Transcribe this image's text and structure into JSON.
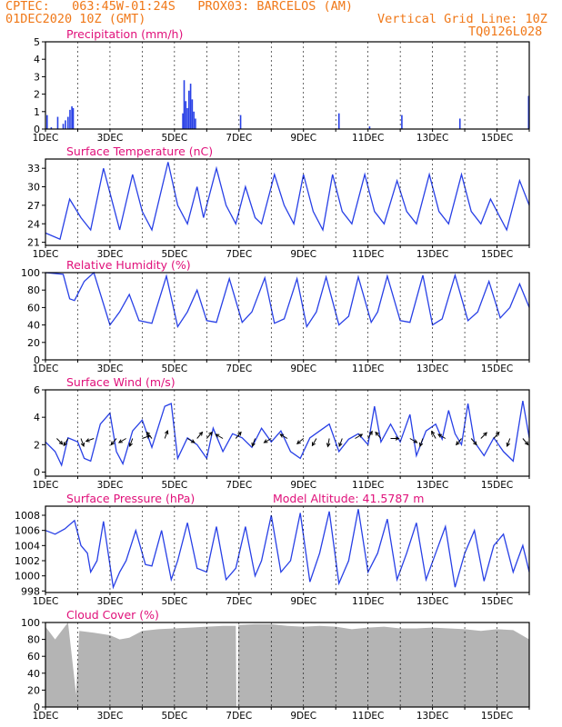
{
  "header": {
    "line1": "CPTEC:   063:45W-01:24S   PROX03: BARCELOS (AM)",
    "line2_left": "01DEC2020 10Z (GMT)",
    "line2_right": "Vertical Grid Line: 10Z",
    "line3_right": "TQ0126L028"
  },
  "colors": {
    "header": "#f07818",
    "title": "#e0107a",
    "line": "#2840e6",
    "bar": "#2840e6",
    "cloud": "#b4b4b4"
  },
  "x_ticks": [
    "1DEC",
    "3DEC",
    "5DEC",
    "7DEC",
    "9DEC",
    "11DEC",
    "13DEC",
    "15DEC"
  ],
  "chart_data": [
    {
      "type": "bar",
      "title": "Precipitation (mm/h)",
      "x_range_days": [
        1,
        16
      ],
      "ylim": [
        0,
        5
      ],
      "yticks": [
        "0",
        "1",
        "2",
        "3",
        "4",
        "5"
      ],
      "bars": [
        {
          "day": 1.05,
          "value": 0.8
        },
        {
          "day": 1.18,
          "value": 0.1
        },
        {
          "day": 1.38,
          "value": 0.7
        },
        {
          "day": 1.55,
          "value": 0.3
        },
        {
          "day": 1.62,
          "value": 0.5
        },
        {
          "day": 1.7,
          "value": 0.7
        },
        {
          "day": 1.76,
          "value": 1.1
        },
        {
          "day": 1.82,
          "value": 1.3
        },
        {
          "day": 1.86,
          "value": 1.2
        },
        {
          "day": 5.3,
          "value": 2.8
        },
        {
          "day": 5.35,
          "value": 1.6
        },
        {
          "day": 5.4,
          "value": 1.2
        },
        {
          "day": 5.45,
          "value": 2.2
        },
        {
          "day": 5.5,
          "value": 2.6
        },
        {
          "day": 5.55,
          "value": 1.7
        },
        {
          "day": 5.6,
          "value": 1.0
        },
        {
          "day": 5.65,
          "value": 0.6
        },
        {
          "day": 5.26,
          "value": 0.9
        },
        {
          "day": 7.05,
          "value": 0.8
        },
        {
          "day": 10.1,
          "value": 0.9
        },
        {
          "day": 11.05,
          "value": 0.15
        },
        {
          "day": 12.05,
          "value": 0.8
        },
        {
          "day": 13.85,
          "value": 0.6
        },
        {
          "day": 15.98,
          "value": 1.9
        }
      ]
    },
    {
      "type": "line",
      "title": "Surface Temperature (nC)",
      "x_range_days": [
        1,
        16
      ],
      "ylim": [
        20.5,
        34.5
      ],
      "yticks": [
        "21",
        "24",
        "27",
        "30",
        "33"
      ],
      "points": [
        [
          1.0,
          22.5
        ],
        [
          1.45,
          21.5
        ],
        [
          1.75,
          28
        ],
        [
          2.1,
          25
        ],
        [
          2.4,
          23
        ],
        [
          2.8,
          33
        ],
        [
          3.1,
          27
        ],
        [
          3.3,
          23
        ],
        [
          3.7,
          32
        ],
        [
          4.0,
          26
        ],
        [
          4.3,
          23
        ],
        [
          4.8,
          34
        ],
        [
          5.1,
          27
        ],
        [
          5.4,
          24
        ],
        [
          5.7,
          30
        ],
        [
          5.9,
          25
        ],
        [
          6.3,
          33
        ],
        [
          6.6,
          27
        ],
        [
          6.9,
          24
        ],
        [
          7.2,
          30
        ],
        [
          7.5,
          25
        ],
        [
          7.7,
          24
        ],
        [
          8.1,
          32
        ],
        [
          8.4,
          27
        ],
        [
          8.7,
          24
        ],
        [
          9.0,
          32
        ],
        [
          9.3,
          26
        ],
        [
          9.6,
          23
        ],
        [
          9.9,
          32
        ],
        [
          10.2,
          26
        ],
        [
          10.5,
          24
        ],
        [
          10.9,
          32
        ],
        [
          11.2,
          26
        ],
        [
          11.5,
          24
        ],
        [
          11.9,
          31
        ],
        [
          12.2,
          26
        ],
        [
          12.5,
          24
        ],
        [
          12.9,
          32
        ],
        [
          13.2,
          26
        ],
        [
          13.5,
          24
        ],
        [
          13.9,
          32
        ],
        [
          14.2,
          26
        ],
        [
          14.5,
          24
        ],
        [
          14.8,
          28
        ],
        [
          15.0,
          26
        ],
        [
          15.3,
          23
        ],
        [
          15.7,
          31
        ],
        [
          16.0,
          27
        ]
      ]
    },
    {
      "type": "line",
      "title": "Relative Humidity (%)",
      "x_range_days": [
        1,
        16
      ],
      "ylim": [
        0,
        100
      ],
      "yticks": [
        "0",
        "20",
        "40",
        "60",
        "80",
        "100"
      ],
      "points": [
        [
          1.0,
          100
        ],
        [
          1.55,
          98
        ],
        [
          1.75,
          70
        ],
        [
          1.9,
          68
        ],
        [
          2.2,
          90
        ],
        [
          2.5,
          100
        ],
        [
          3.0,
          40
        ],
        [
          3.3,
          55
        ],
        [
          3.6,
          75
        ],
        [
          3.9,
          45
        ],
        [
          4.3,
          42
        ],
        [
          4.75,
          96
        ],
        [
          5.1,
          38
        ],
        [
          5.4,
          55
        ],
        [
          5.7,
          80
        ],
        [
          6.0,
          45
        ],
        [
          6.3,
          43
        ],
        [
          6.7,
          93
        ],
        [
          7.1,
          43
        ],
        [
          7.4,
          55
        ],
        [
          7.8,
          94
        ],
        [
          8.1,
          42
        ],
        [
          8.4,
          47
        ],
        [
          8.8,
          93
        ],
        [
          9.1,
          38
        ],
        [
          9.4,
          55
        ],
        [
          9.7,
          95
        ],
        [
          10.1,
          40
        ],
        [
          10.4,
          50
        ],
        [
          10.7,
          95
        ],
        [
          11.1,
          43
        ],
        [
          11.3,
          55
        ],
        [
          11.6,
          96
        ],
        [
          12.0,
          45
        ],
        [
          12.3,
          43
        ],
        [
          12.7,
          97
        ],
        [
          13.0,
          40
        ],
        [
          13.3,
          47
        ],
        [
          13.7,
          97
        ],
        [
          14.1,
          45
        ],
        [
          14.4,
          55
        ],
        [
          14.75,
          90
        ],
        [
          15.1,
          48
        ],
        [
          15.4,
          60
        ],
        [
          15.7,
          87
        ],
        [
          16.0,
          60
        ]
      ]
    },
    {
      "type": "line",
      "title": "Surface Wind (m/s)",
      "x_range_days": [
        1,
        16
      ],
      "ylim": [
        -0.3,
        6
      ],
      "yticks": [
        "0",
        "2",
        "4",
        "6"
      ],
      "points": [
        [
          1.0,
          2.2
        ],
        [
          1.3,
          1.5
        ],
        [
          1.5,
          0.5
        ],
        [
          1.7,
          2.5
        ],
        [
          2.0,
          2.2
        ],
        [
          2.2,
          1.0
        ],
        [
          2.4,
          0.8
        ],
        [
          2.7,
          3.5
        ],
        [
          3.0,
          4.3
        ],
        [
          3.2,
          1.5
        ],
        [
          3.4,
          0.6
        ],
        [
          3.7,
          3.0
        ],
        [
          4.0,
          3.8
        ],
        [
          4.3,
          1.8
        ],
        [
          4.7,
          4.8
        ],
        [
          4.9,
          5.0
        ],
        [
          5.1,
          1.0
        ],
        [
          5.4,
          2.5
        ],
        [
          5.7,
          2.0
        ],
        [
          6.0,
          1.0
        ],
        [
          6.2,
          3.2
        ],
        [
          6.5,
          1.5
        ],
        [
          6.8,
          2.8
        ],
        [
          7.1,
          2.5
        ],
        [
          7.4,
          1.8
        ],
        [
          7.7,
          3.2
        ],
        [
          8.0,
          2.2
        ],
        [
          8.3,
          3.0
        ],
        [
          8.6,
          1.5
        ],
        [
          8.9,
          1.0
        ],
        [
          9.2,
          2.5
        ],
        [
          9.5,
          3.0
        ],
        [
          9.8,
          3.5
        ],
        [
          10.1,
          1.5
        ],
        [
          10.4,
          2.4
        ],
        [
          10.7,
          2.8
        ],
        [
          11.0,
          2.0
        ],
        [
          11.2,
          4.8
        ],
        [
          11.4,
          2.2
        ],
        [
          11.7,
          3.5
        ],
        [
          12.0,
          2.2
        ],
        [
          12.3,
          4.2
        ],
        [
          12.5,
          1.2
        ],
        [
          12.8,
          3.0
        ],
        [
          13.1,
          3.5
        ],
        [
          13.3,
          2.4
        ],
        [
          13.5,
          4.5
        ],
        [
          13.7,
          2.8
        ],
        [
          13.9,
          2.0
        ],
        [
          14.1,
          5.0
        ],
        [
          14.3,
          2.2
        ],
        [
          14.6,
          1.2
        ],
        [
          14.9,
          2.5
        ],
        [
          15.2,
          1.5
        ],
        [
          15.5,
          0.8
        ],
        [
          15.8,
          5.2
        ],
        [
          16.0,
          2.5
        ]
      ],
      "arrows": [
        {
          "day": 1.35,
          "dir_deg": 135
        },
        {
          "day": 1.7,
          "dir_deg": 210
        },
        {
          "day": 2.1,
          "dir_deg": 160
        },
        {
          "day": 2.5,
          "dir_deg": 250
        },
        {
          "day": 3.2,
          "dir_deg": 220
        },
        {
          "day": 3.5,
          "dir_deg": 240
        },
        {
          "day": 3.7,
          "dir_deg": 200
        },
        {
          "day": 4.0,
          "dir_deg": 70
        },
        {
          "day": 4.3,
          "dir_deg": 320
        },
        {
          "day": 4.7,
          "dir_deg": 20
        },
        {
          "day": 5.4,
          "dir_deg": 120
        },
        {
          "day": 5.7,
          "dir_deg": 40
        },
        {
          "day": 6.0,
          "dir_deg": 40
        },
        {
          "day": 6.5,
          "dir_deg": 300
        },
        {
          "day": 6.9,
          "dir_deg": 40
        },
        {
          "day": 7.5,
          "dir_deg": 200
        },
        {
          "day": 8.0,
          "dir_deg": 240
        },
        {
          "day": 8.5,
          "dir_deg": 300
        },
        {
          "day": 9.0,
          "dir_deg": 230
        },
        {
          "day": 9.4,
          "dir_deg": 210
        },
        {
          "day": 9.8,
          "dir_deg": 190
        },
        {
          "day": 10.2,
          "dir_deg": 200
        },
        {
          "day": 10.6,
          "dir_deg": 60
        },
        {
          "day": 11.0,
          "dir_deg": 30
        },
        {
          "day": 11.4,
          "dir_deg": 320
        },
        {
          "day": 11.7,
          "dir_deg": 90
        },
        {
          "day": 12.3,
          "dir_deg": 120
        },
        {
          "day": 12.7,
          "dir_deg": 200
        },
        {
          "day": 13.1,
          "dir_deg": 330
        },
        {
          "day": 13.4,
          "dir_deg": 300
        },
        {
          "day": 13.9,
          "dir_deg": 220
        },
        {
          "day": 14.2,
          "dir_deg": 140
        },
        {
          "day": 14.5,
          "dir_deg": 45
        },
        {
          "day": 14.9,
          "dir_deg": 40
        },
        {
          "day": 15.4,
          "dir_deg": 200
        },
        {
          "day": 15.8,
          "dir_deg": 140
        }
      ]
    },
    {
      "type": "line",
      "title": "Surface Pressure (hPa)",
      "annotation": "Model Altitude: 41.5787 m",
      "x_range_days": [
        1,
        16
      ],
      "ylim": [
        997.8,
        1009.2
      ],
      "yticks": [
        "998",
        "1000",
        "1002",
        "1004",
        "1006",
        "1008"
      ],
      "points": [
        [
          1.0,
          1006
        ],
        [
          1.3,
          1005.5
        ],
        [
          1.6,
          1006.2
        ],
        [
          1.9,
          1007.3
        ],
        [
          2.1,
          1004
        ],
        [
          2.3,
          1003
        ],
        [
          2.4,
          1000.5
        ],
        [
          2.6,
          1002
        ],
        [
          2.8,
          1007.2
        ],
        [
          3.1,
          998.5
        ],
        [
          3.3,
          1000.5
        ],
        [
          3.5,
          1002
        ],
        [
          3.8,
          1006
        ],
        [
          4.1,
          1001.5
        ],
        [
          4.3,
          1001.3
        ],
        [
          4.6,
          1006
        ],
        [
          4.9,
          999.5
        ],
        [
          5.1,
          1002
        ],
        [
          5.4,
          1007
        ],
        [
          5.7,
          1001
        ],
        [
          6.0,
          1000.5
        ],
        [
          6.3,
          1006.5
        ],
        [
          6.6,
          999.5
        ],
        [
          6.9,
          1001
        ],
        [
          7.2,
          1006.5
        ],
        [
          7.5,
          1000
        ],
        [
          7.7,
          1002
        ],
        [
          8.0,
          1008
        ],
        [
          8.3,
          1000.5
        ],
        [
          8.6,
          1002
        ],
        [
          8.9,
          1008.3
        ],
        [
          9.2,
          999.2
        ],
        [
          9.5,
          1003
        ],
        [
          9.8,
          1008.5
        ],
        [
          10.1,
          999
        ],
        [
          10.4,
          1002
        ],
        [
          10.7,
          1008.8
        ],
        [
          11.0,
          1000.5
        ],
        [
          11.3,
          1003
        ],
        [
          11.6,
          1007.5
        ],
        [
          11.9,
          999.5
        ],
        [
          12.2,
          1003
        ],
        [
          12.5,
          1007
        ],
        [
          12.8,
          999.5
        ],
        [
          13.1,
          1003
        ],
        [
          13.4,
          1006.5
        ],
        [
          13.7,
          998.5
        ],
        [
          14.0,
          1003
        ],
        [
          14.3,
          1006
        ],
        [
          14.6,
          999.3
        ],
        [
          14.9,
          1004
        ],
        [
          15.2,
          1005.5
        ],
        [
          15.5,
          1000.5
        ],
        [
          15.8,
          1004
        ],
        [
          16.0,
          1000.5
        ]
      ]
    },
    {
      "type": "area",
      "title": "Cloud Cover (%)",
      "x_range_days": [
        1,
        16
      ],
      "ylim": [
        0,
        100
      ],
      "yticks": [
        "0",
        "20",
        "40",
        "60",
        "80",
        "100"
      ],
      "points": [
        [
          1.0,
          95
        ],
        [
          1.3,
          80
        ],
        [
          1.5,
          90
        ],
        [
          1.7,
          100
        ],
        [
          1.95,
          15
        ],
        [
          2.05,
          90
        ],
        [
          2.5,
          88
        ],
        [
          3.0,
          85
        ],
        [
          3.3,
          80
        ],
        [
          3.6,
          82
        ],
        [
          4.0,
          90
        ],
        [
          4.5,
          92
        ],
        [
          5.0,
          93
        ],
        [
          5.5,
          94
        ],
        [
          6.0,
          95
        ],
        [
          6.5,
          96
        ],
        [
          6.9,
          96
        ],
        [
          6.92,
          0
        ],
        [
          6.96,
          0
        ],
        [
          6.98,
          97
        ],
        [
          7.5,
          98
        ],
        [
          8.0,
          98
        ],
        [
          8.5,
          96
        ],
        [
          9.0,
          95
        ],
        [
          9.5,
          96
        ],
        [
          10.0,
          95
        ],
        [
          10.5,
          92
        ],
        [
          11.0,
          94
        ],
        [
          11.5,
          95
        ],
        [
          12.0,
          93
        ],
        [
          12.5,
          93
        ],
        [
          13.0,
          94
        ],
        [
          13.5,
          93
        ],
        [
          14.0,
          92
        ],
        [
          14.5,
          90
        ],
        [
          15.0,
          92
        ],
        [
          15.5,
          91
        ],
        [
          16.0,
          80
        ]
      ]
    }
  ]
}
